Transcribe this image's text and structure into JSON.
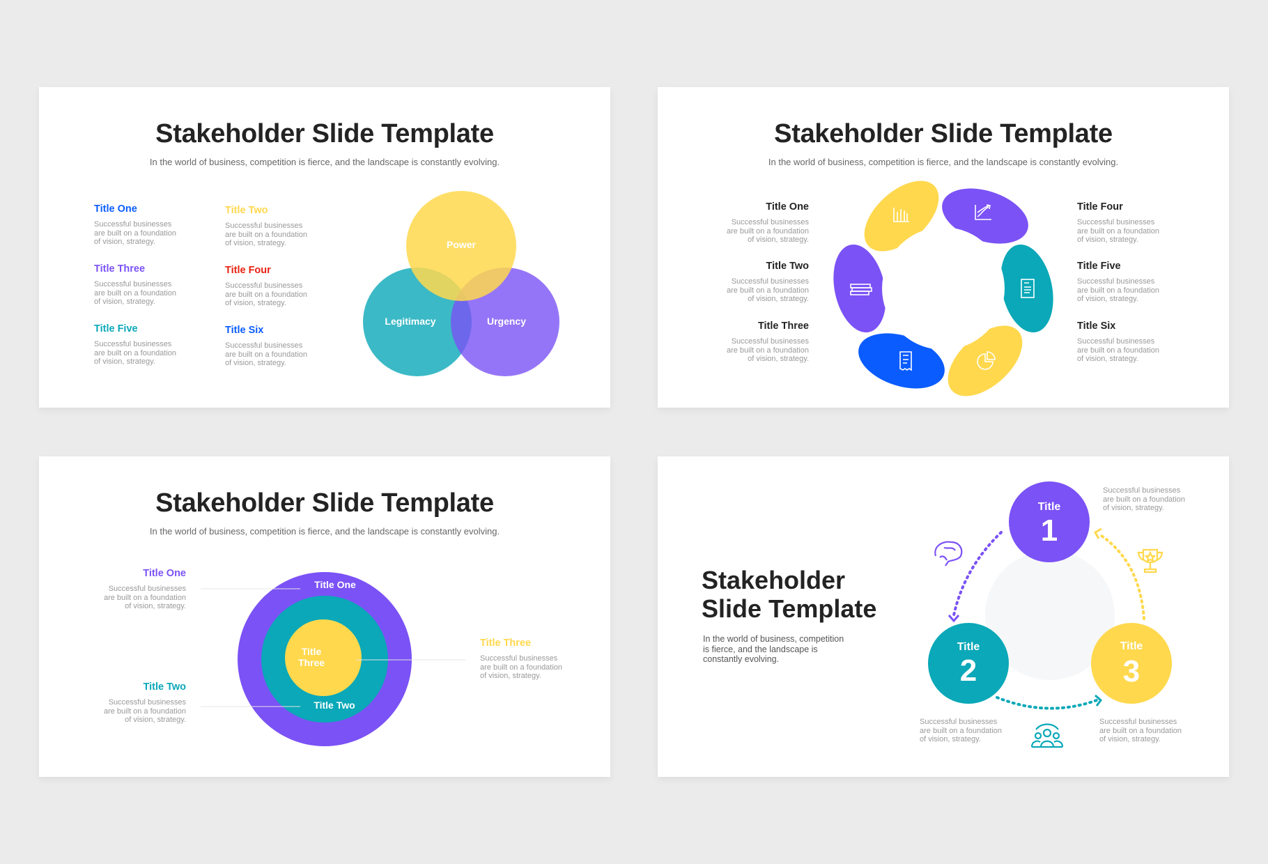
{
  "colors": {
    "blue": "#0a5cff",
    "yellow": "#ffd84d",
    "purple": "#7b52f5",
    "teal": "#0aa8b8",
    "red": "#e8200f",
    "dark": "#232323"
  },
  "body_text": "Successful businesses\nare built on a foundation\nof vision, strategy.",
  "slide1": {
    "title": "Stakeholder Slide Template",
    "subtitle": "In the world of business, competition is fierce, and the landscape is constantly evolving.",
    "items": [
      {
        "title": "Title One",
        "color": "blue"
      },
      {
        "title": "Title Two",
        "color": "yellow"
      },
      {
        "title": "Title Three",
        "color": "purple"
      },
      {
        "title": "Title Four",
        "color": "red"
      },
      {
        "title": "Title Five",
        "color": "teal"
      },
      {
        "title": "Title Six",
        "color": "blue"
      }
    ],
    "venn": {
      "top": "Power",
      "left": "Legitimacy",
      "right": "Urgency"
    }
  },
  "slide2": {
    "title": "Stakeholder Slide Template",
    "subtitle": "In the world of business, competition is fierce, and the landscape is constantly evolving.",
    "left_items": [
      "Title One",
      "Title Two",
      "Title Three"
    ],
    "right_items": [
      "Title Four",
      "Title Five",
      "Title Six"
    ],
    "petal_icons": [
      "bar-chart-icon",
      "growth-chart-icon",
      "document-icon",
      "pie-chart-icon",
      "receipt-icon",
      "bricks-icon"
    ]
  },
  "slide3": {
    "title": "Stakeholder Slide Template",
    "subtitle": "In the world of business, competition is fierce, and the landscape is constantly evolving.",
    "rings": {
      "outer": "Title One",
      "middle": "Title Two",
      "inner": "Title\nThree"
    },
    "items": [
      {
        "title": "Title One",
        "color": "purple"
      },
      {
        "title": "Title Two",
        "color": "teal"
      },
      {
        "title": "Title Three",
        "color": "yellow"
      }
    ]
  },
  "slide4": {
    "title_line1": "Stakeholder",
    "title_line2": "Slide Template",
    "body": "In the world of business, competition\nis fierce, and the landscape is\nconstantly evolving.",
    "steps": [
      {
        "label": "Title",
        "number": "1",
        "color": "purple",
        "icon": "brain-icon"
      },
      {
        "label": "Title",
        "number": "2",
        "color": "teal",
        "icon": "people-icon"
      },
      {
        "label": "Title",
        "number": "3",
        "color": "yellow",
        "icon": "trophy-icon"
      }
    ]
  }
}
